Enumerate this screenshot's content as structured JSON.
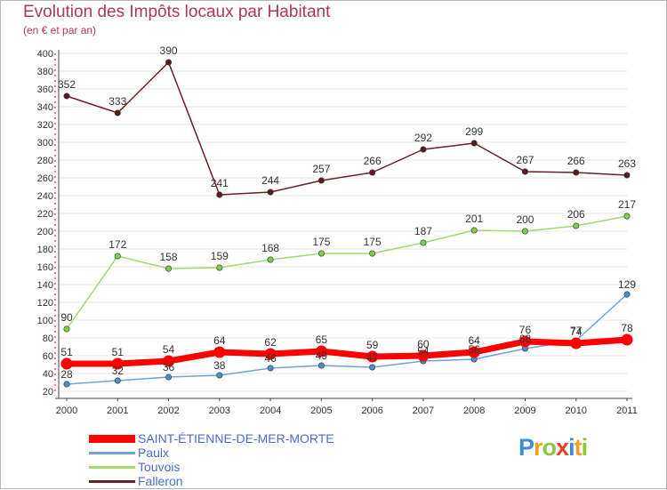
{
  "title": "Evolution des Impôts locaux par Habitant",
  "subtitle": "(en € et par an)",
  "brand": {
    "letters": [
      "P",
      "r",
      "o",
      "x",
      "i",
      "t",
      "i"
    ],
    "colors": [
      "#3a8fd6",
      "#f2a11c",
      "#8cc63f",
      "#e63f2a",
      "#3a8fd6",
      "#f2a11c",
      "#8cc63f"
    ]
  },
  "chart_data": {
    "type": "line",
    "title": "Evolution des Impôts locaux par Habitant",
    "subtitle": "(en € et par an)",
    "x": [
      "2000",
      "2001",
      "2002",
      "2003",
      "2004",
      "2005",
      "2006",
      "2007",
      "2008",
      "2009",
      "2010",
      "2011"
    ],
    "yticks": [
      20,
      40,
      60,
      80,
      100,
      120,
      140,
      160,
      180,
      200,
      220,
      240,
      260,
      280,
      300,
      320,
      340,
      360,
      380,
      400
    ],
    "ylim": [
      20,
      400
    ],
    "grid": "horizontal",
    "legend_position": "bottom-left",
    "series": [
      {
        "name": "Falleron",
        "color": "#6b1f24",
        "dot": "#5a1a1e",
        "values": [
          352,
          333,
          390,
          241,
          244,
          257,
          266,
          292,
          299,
          267,
          266,
          263
        ]
      },
      {
        "name": "Touvois",
        "color": "#9ddb6e",
        "dot": "#7ccf47",
        "values": [
          90,
          172,
          158,
          159,
          168,
          175,
          175,
          187,
          201,
          200,
          206,
          217
        ]
      },
      {
        "name": "Paulx",
        "color": "#6fa3d6",
        "dot": "#4a8fd0",
        "values": [
          28,
          32,
          36,
          38,
          46,
          49,
          47,
          54,
          56,
          68,
          77,
          129
        ]
      },
      {
        "name": "SAINT-ÉTIENNE-DE-MER-MORTE",
        "color": "#ff0000",
        "dot": "#ff0000",
        "values": [
          51,
          51,
          54,
          64,
          62,
          65,
          59,
          60,
          64,
          76,
          74,
          78
        ]
      }
    ]
  }
}
